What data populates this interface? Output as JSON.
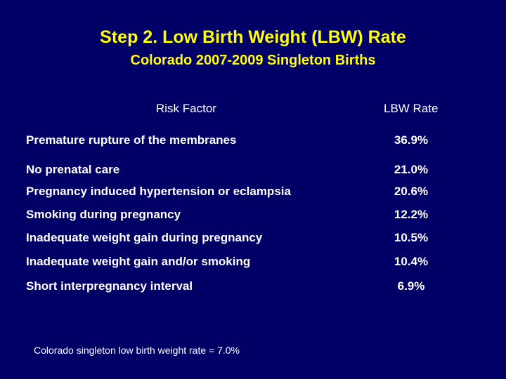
{
  "slide": {
    "title": "Step 2. Low Birth Weight (LBW) Rate",
    "subtitle": "Colorado 2007-2009 Singleton Births",
    "background_color": "#000066",
    "title_color": "#FFFF00",
    "text_color": "#FFFFFF"
  },
  "table": {
    "headers": {
      "factor": "Risk Factor",
      "rate": "LBW Rate"
    },
    "rows": [
      {
        "factor": "Premature rupture of the membranes",
        "rate": "36.9%"
      },
      {
        "factor": "No prenatal care",
        "rate": "21.0%"
      },
      {
        "factor": "Pregnancy induced hypertension or eclampsia",
        "rate": "20.6%"
      },
      {
        "factor": "Smoking during pregnancy",
        "rate": "12.2%"
      },
      {
        "factor": "Inadequate weight gain during pregnancy",
        "rate": "10.5%"
      },
      {
        "factor": "Inadequate weight gain and/or smoking",
        "rate": "10.4%"
      },
      {
        "factor": "Short interpregnancy interval",
        "rate": "6.9%"
      }
    ]
  },
  "footnote": "Colorado singleton low birth weight rate = 7.0%"
}
